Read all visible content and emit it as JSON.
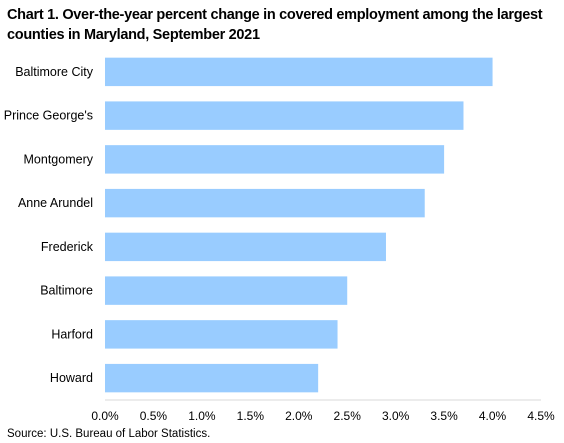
{
  "title": "Chart 1. Over-the-year percent change in covered employment among the largest counties in Maryland, September 2021",
  "source": "Source: U.S. Bureau of Labor Statistics.",
  "chart_data": {
    "type": "bar",
    "orientation": "horizontal",
    "title": "Chart 1. Over-the-year percent change in covered employment among the largest counties in Maryland, September 2021",
    "categories": [
      "Baltimore City",
      "Prince George's",
      "Montgomery",
      "Anne Arundel",
      "Frederick",
      "Baltimore",
      "Harford",
      "Howard"
    ],
    "values": [
      4.0,
      3.7,
      3.5,
      3.3,
      2.9,
      2.5,
      2.4,
      2.2
    ],
    "unit": "percent",
    "xlim": [
      0,
      4.5
    ],
    "x_ticks": [
      "0.0%",
      "0.5%",
      "1.0%",
      "1.5%",
      "2.0%",
      "2.5%",
      "3.0%",
      "3.5%",
      "4.0%",
      "4.5%"
    ],
    "bar_color": "#99CCFF",
    "grid": false,
    "legend": "none"
  }
}
